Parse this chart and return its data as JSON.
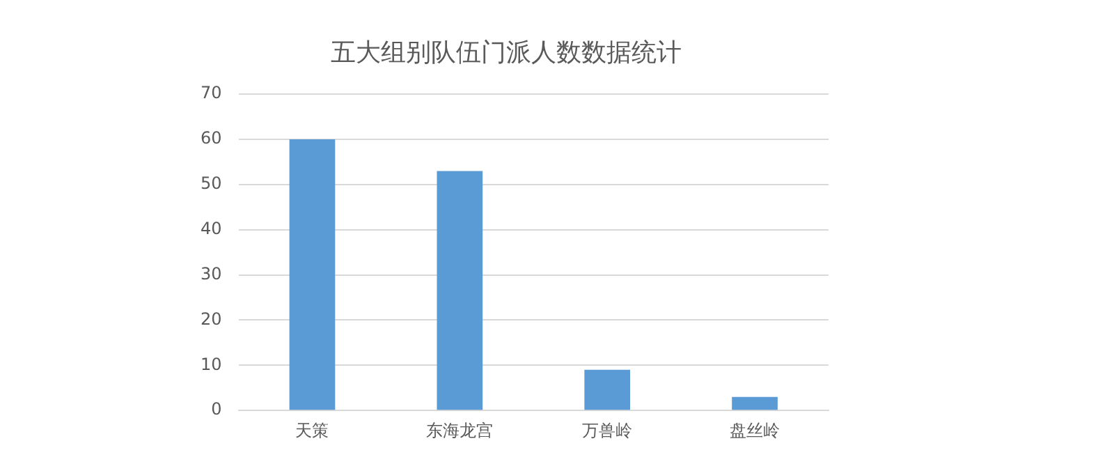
{
  "chart_data": {
    "type": "bar",
    "title": "五大组别队伍门派人数数据统计",
    "categories": [
      "天策",
      "东海龙宫",
      "万兽岭",
      "盘丝岭"
    ],
    "values": [
      60,
      53,
      9,
      3
    ],
    "color": "#5b9bd5",
    "ylim": [
      0,
      70
    ],
    "yticks": [
      0,
      10,
      20,
      30,
      40,
      50,
      60,
      70
    ],
    "grid": "y",
    "legend": false
  }
}
